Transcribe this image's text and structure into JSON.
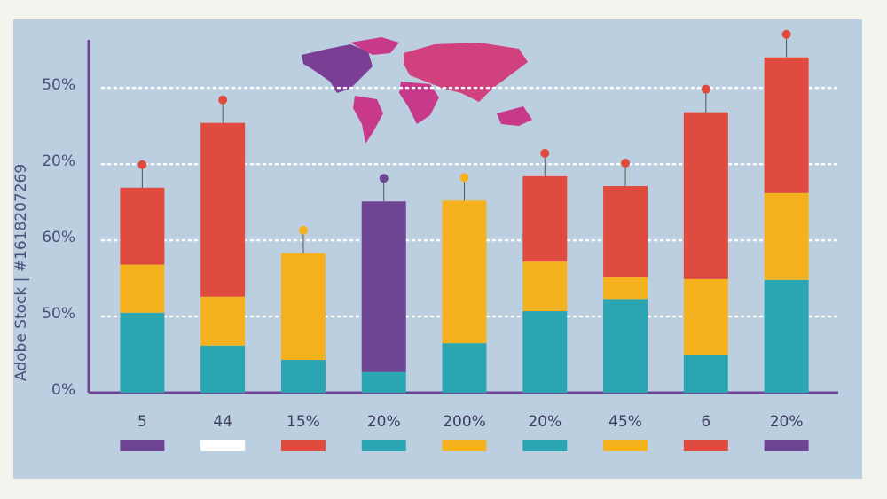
{
  "chart_data": {
    "type": "bar",
    "stacked": true,
    "categories": [
      "5",
      "44",
      "15%",
      "20%",
      "200%",
      "20%",
      "45%",
      "6",
      "20%"
    ],
    "series": [
      {
        "color": "#2aa6b3",
        "values": [
          1.05,
          0.62,
          0.43,
          0.27,
          0.65,
          1.07,
          1.23,
          0.5,
          1.48
        ]
      },
      {
        "color": "#f6b21e",
        "values": [
          0.63,
          0.64,
          1.4,
          null,
          1.87,
          0.65,
          0.29,
          0.99,
          1.14
        ]
      },
      {
        "color": "#e04b3f",
        "values": [
          1.01,
          2.28,
          null,
          null,
          null,
          1.12,
          1.19,
          2.19,
          1.78
        ]
      },
      {
        "color": "#6e4593",
        "values": [
          null,
          null,
          null,
          2.24,
          null,
          null,
          null,
          null,
          null
        ]
      }
    ],
    "swatch_colors": [
      "#6e4593",
      "#ffffff",
      "#e04b3f",
      "#2aa6b3",
      "#f6b21e",
      "#2aa6b3",
      "#f6b21e",
      "#e04b3f",
      "#6e4593"
    ],
    "ylim": [
      0,
      4.63
    ],
    "yticks": [
      {
        "value": 0,
        "label": "0%"
      },
      {
        "value": 1,
        "label": "50%"
      },
      {
        "value": 2,
        "label": "60%"
      },
      {
        "value": 3,
        "label": "20%"
      },
      {
        "value": 4,
        "label": "50%"
      }
    ],
    "grid": true,
    "watermark": "Adobe Stock | #1618207269"
  }
}
